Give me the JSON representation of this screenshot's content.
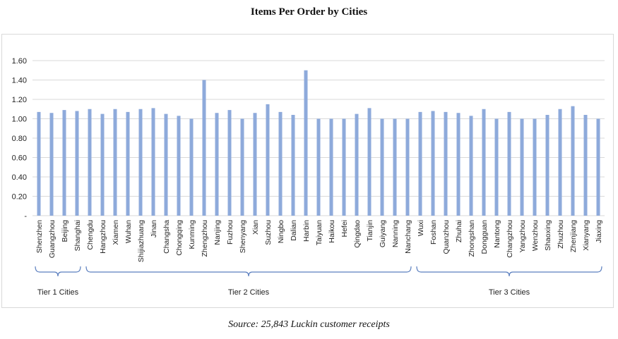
{
  "title": "Items Per Order by Cities",
  "source": "Source: 25,843 Luckin customer receipts",
  "colors": {
    "bar": "#8eaadb",
    "grid": "#d9d9d9",
    "bracket": "#5b7fbf"
  },
  "chart_data": {
    "type": "bar",
    "title": "Items Per Order by Cities",
    "xlabel": "",
    "ylabel": "",
    "ylim": [
      0,
      1.6
    ],
    "yticks": [
      "-",
      "0.20",
      "0.40",
      "0.60",
      "0.80",
      "1.00",
      "1.20",
      "1.40",
      "1.60"
    ],
    "grid": true,
    "categories": [
      "Shenzhen",
      "Guangzhou",
      "Beijing",
      "Shanghai",
      "Chengdu",
      "Hangzhou",
      "Xiamen",
      "Wuhan",
      "Shijiazhuang",
      "Jinan",
      "Changsha",
      "Chongqing",
      "Kunming",
      "Zhengzhou",
      "Nanjing",
      "Fuzhou",
      "Shenyang",
      "Xian",
      "Suzhou",
      "Ningbo",
      "Dalian",
      "Harbin",
      "Taiyuan",
      "Haikou",
      "Hefei",
      "Qingdao",
      "Tianjin",
      "Guiyang",
      "Nanning",
      "Nanchang",
      "Wuxi",
      "Foshan",
      "Quanzhou",
      "Zhuhai",
      "Zhongshan",
      "Dongguan",
      "Nantong",
      "Changzhou",
      "Yangzhou",
      "Wenzhou",
      "Shaoxing",
      "Zhuzhou",
      "Zhenjiang",
      "Xianyang",
      "Jiaxing"
    ],
    "values": [
      1.07,
      1.06,
      1.09,
      1.08,
      1.1,
      1.05,
      1.1,
      1.07,
      1.1,
      1.11,
      1.05,
      1.03,
      1.0,
      1.4,
      1.06,
      1.09,
      1.0,
      1.06,
      1.15,
      1.07,
      1.04,
      1.5,
      1.0,
      1.0,
      1.0,
      1.05,
      1.11,
      1.0,
      1.0,
      1.0,
      1.07,
      1.08,
      1.07,
      1.06,
      1.03,
      1.1,
      1.0,
      1.07,
      1.0,
      1.0,
      1.04,
      1.1,
      1.13,
      1.04,
      1.0
    ],
    "groups": [
      {
        "label": "Tier 1 Cities",
        "start": 0,
        "end": 3
      },
      {
        "label": "Tier 2 Cities",
        "start": 4,
        "end": 29
      },
      {
        "label": "Tier 3 Cities",
        "start": 30,
        "end": 44
      }
    ]
  }
}
